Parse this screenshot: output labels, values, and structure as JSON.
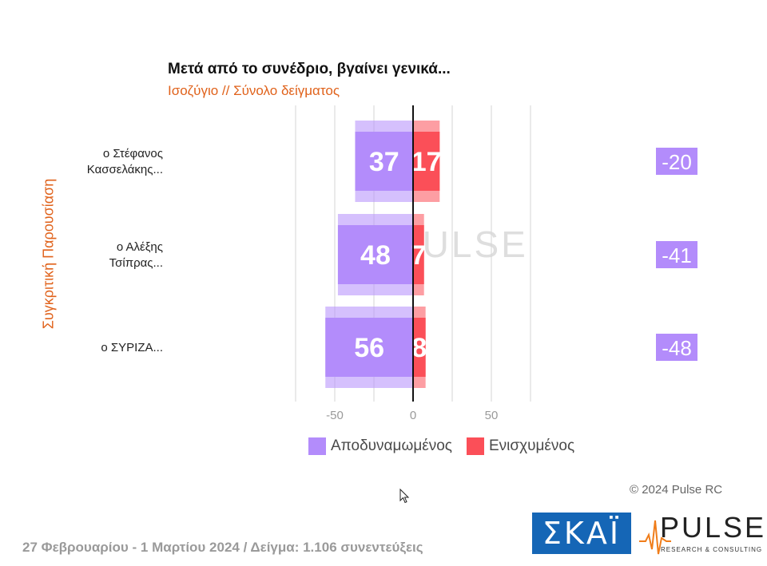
{
  "chart_data": {
    "type": "bar",
    "title": "Μετά από το συνέδριο, βγαίνει γενικά...",
    "subtitle": "Ισοζύγιο // Σύνολο δείγματος",
    "ylabel": "Συγκριτική Παρουσίαση",
    "categories": [
      [
        "ο Στέφανος",
        "Κασσελάκης..."
      ],
      [
        "ο Αλέξης",
        "Τσίπρας..."
      ],
      [
        "ο ΣΥΡΙΖΑ..."
      ]
    ],
    "series": [
      {
        "name": "Αποδυναμωμένος",
        "color": "#b38cfb",
        "values": [
          37,
          48,
          56
        ]
      },
      {
        "name": "Ενισχυμένος",
        "color": "#fb4f58",
        "values": [
          17,
          7,
          8
        ]
      }
    ],
    "balance": {
      "values": [
        "-20",
        "-41",
        "-48"
      ],
      "color": "#b38cfb"
    },
    "x_ticks": [
      "-50",
      "0",
      "50"
    ],
    "xlim": [
      -75,
      75
    ],
    "grid": true
  },
  "copyright": "© 2024 Pulse RC",
  "footer": "27 Φεβρουαρίου - 1 Μαρτίου 2024  /  Δείγμα:  1.106 συνεντεύξεις",
  "watermark": "PULSE",
  "logos": {
    "skai": "ΣΚΑΪ",
    "pulse": "PULSE",
    "pulse_tagline": "RESEARCH & CONSULTING"
  }
}
